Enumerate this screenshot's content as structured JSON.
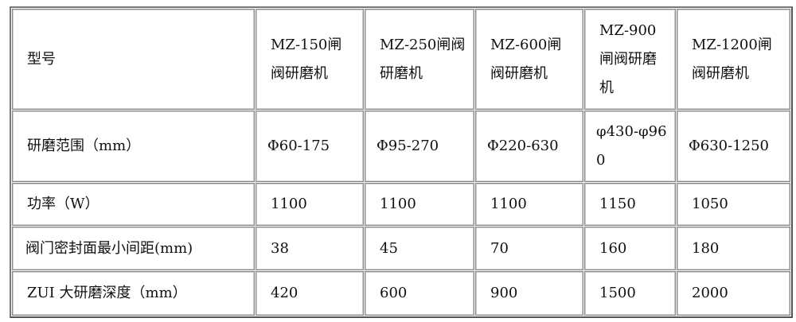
{
  "table": {
    "header": [
      "型号",
      "MZ-150闸阀研磨机",
      "MZ-250闸阀研磨机",
      "MZ-600闸阀研磨机",
      "MZ-900闸阀研磨机",
      "MZ-1200闸阀研磨机"
    ],
    "rows": [
      [
        "研磨范围（mm）",
        "Φ60-175",
        "Φ95-270",
        "Φ220-630",
        "φ430-φ960",
        "Φ630-1250"
      ],
      [
        "功率（W）",
        "1100",
        "1100",
        "1100",
        "1150",
        "1050"
      ],
      [
        "阀门密封面最小间距(mm)",
        "38",
        "45",
        "70",
        "160",
        "180"
      ],
      [
        "ZUI 大研磨深度（mm）",
        "420",
        "600",
        "900",
        "1500",
        "2000"
      ]
    ]
  }
}
